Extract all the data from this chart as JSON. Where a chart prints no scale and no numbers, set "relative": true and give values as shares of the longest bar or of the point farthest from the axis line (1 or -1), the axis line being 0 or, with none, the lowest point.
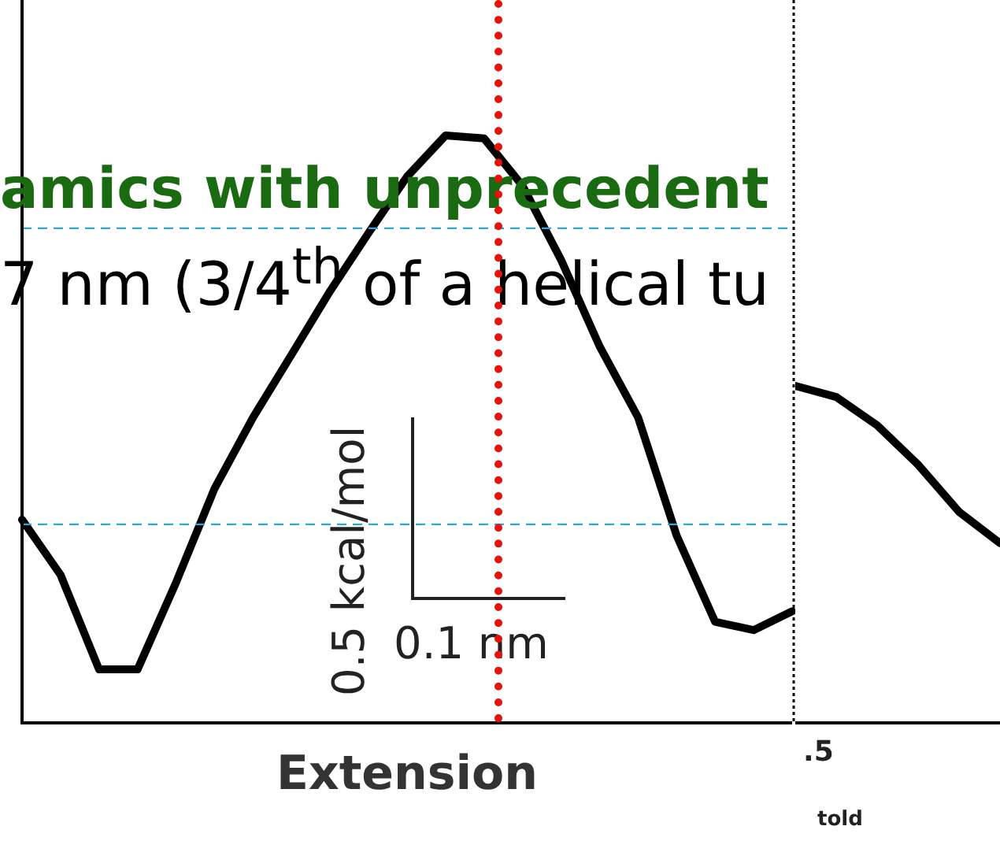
{
  "chart_data": [
    {
      "type": "line",
      "relative": true,
      "xlabel": "Extension",
      "color": "#000000",
      "marker": "none",
      "line_style": "solid",
      "grid": false,
      "legend": false,
      "categories": [
        null,
        null,
        null,
        null,
        null,
        null,
        null,
        null,
        null,
        null,
        null,
        null,
        null,
        null,
        null,
        null,
        null,
        null,
        null,
        null,
        null
      ],
      "values": [
        0.346,
        0.252,
        0.091,
        0.091,
        0.239,
        0.399,
        0.52,
        0.627,
        0.735,
        0.834,
        0.93,
        1.0,
        0.995,
        0.914,
        0.788,
        0.641,
        0.52,
        0.319,
        0.172,
        0.158,
        0.19
      ],
      "ref_lines": [
        {
          "axis": "y",
          "value": 0.842,
          "color": "#29a8e0",
          "line_style": "dashed"
        },
        {
          "axis": "y",
          "value": 0.338,
          "color": "#29a8e0",
          "line_style": "dashed"
        }
      ],
      "annotations": [
        "amics with unprecedent",
        "7 nm (3/4$^{th}$ of a helical tu",
        "0.5 kcal/mol",
        "0.1 nm"
      ]
    },
    {
      "type": "line",
      "relative": true,
      "color": "#000000",
      "marker": "none",
      "line_style": "solid",
      "grid": false,
      "legend": false,
      "categories": [
        null,
        null,
        null,
        null,
        null,
        null
      ],
      "values": [
        1.0,
        0.967,
        0.883,
        0.766,
        0.626,
        0.533
      ],
      "annotations": [
        ".5",
        "told"
      ]
    }
  ]
}
